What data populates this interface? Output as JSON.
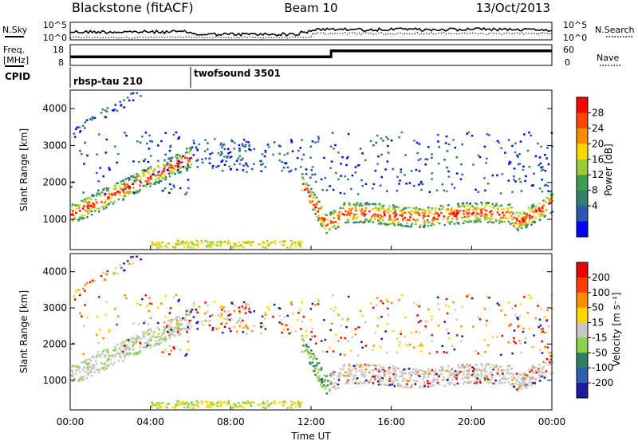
{
  "header": {
    "station": "Blackstone (fitACF)",
    "beam": "Beam 10",
    "date": "13/Oct/2013"
  },
  "info_panels": {
    "nsky_label": "N.Sky",
    "nsky_ticks": [
      "10^5",
      "10^0"
    ],
    "nsearch_label": "N.Search",
    "nsearch_ticks": [
      "10^5",
      "10^0"
    ],
    "freq_label_1": "Freq.",
    "freq_label_2": "[MHz]",
    "freq_ticks": [
      "18",
      "8"
    ],
    "nave_label": "Nave",
    "nave_ticks": [
      "60",
      "0"
    ],
    "cpid_label": "CPID",
    "cpid_modes": [
      {
        "name": "rbsp-tau 210",
        "start_hour": 0
      },
      {
        "name": "twofsound 3501",
        "start_hour": 6
      }
    ],
    "freq_step": {
      "hour": 13,
      "before": "low",
      "after": "high"
    }
  },
  "chart_data": [
    {
      "type": "heatmap",
      "name": "power",
      "ylabel": "Slant Range [km]",
      "xlabel": "Time UT",
      "xlim": [
        0,
        24
      ],
      "ylim": [
        180,
        4500
      ],
      "yticks": [
        1000,
        2000,
        3000,
        4000
      ],
      "colorbar": {
        "label": "Power [dB]",
        "ticks": [
          4,
          8,
          12,
          16,
          20,
          24,
          28
        ],
        "range": [
          0,
          32
        ],
        "colors": [
          "#0000ff",
          "#2a57b0",
          "#2f7f6a",
          "#3d9d4f",
          "#9acd32",
          "#ffd700",
          "#ff8c00",
          "#ff4500",
          "#ff0000"
        ]
      }
    },
    {
      "type": "heatmap",
      "name": "velocity",
      "ylabel": "Slant Range [km]",
      "xlabel": "Time UT",
      "xlim": [
        0,
        24
      ],
      "ylim": [
        180,
        4500
      ],
      "yticks": [
        1000,
        2000,
        3000,
        4000
      ],
      "xticks": [
        "00:00",
        "04:00",
        "08:00",
        "12:00",
        "16:00",
        "20:00",
        "00:00"
      ],
      "colorbar": {
        "label": "Velocity [m s⁻¹]",
        "ticks": [
          "200",
          "100",
          "50",
          "15",
          "-15",
          "-50",
          "-100",
          "-200"
        ],
        "colors": [
          "#1a1aa0",
          "#2d5fb0",
          "#2f7d63",
          "#8bd14a",
          "#c8c8c8",
          "#ffd700",
          "#ff8c00",
          "#ff3c00",
          "#ee0000"
        ]
      }
    }
  ]
}
